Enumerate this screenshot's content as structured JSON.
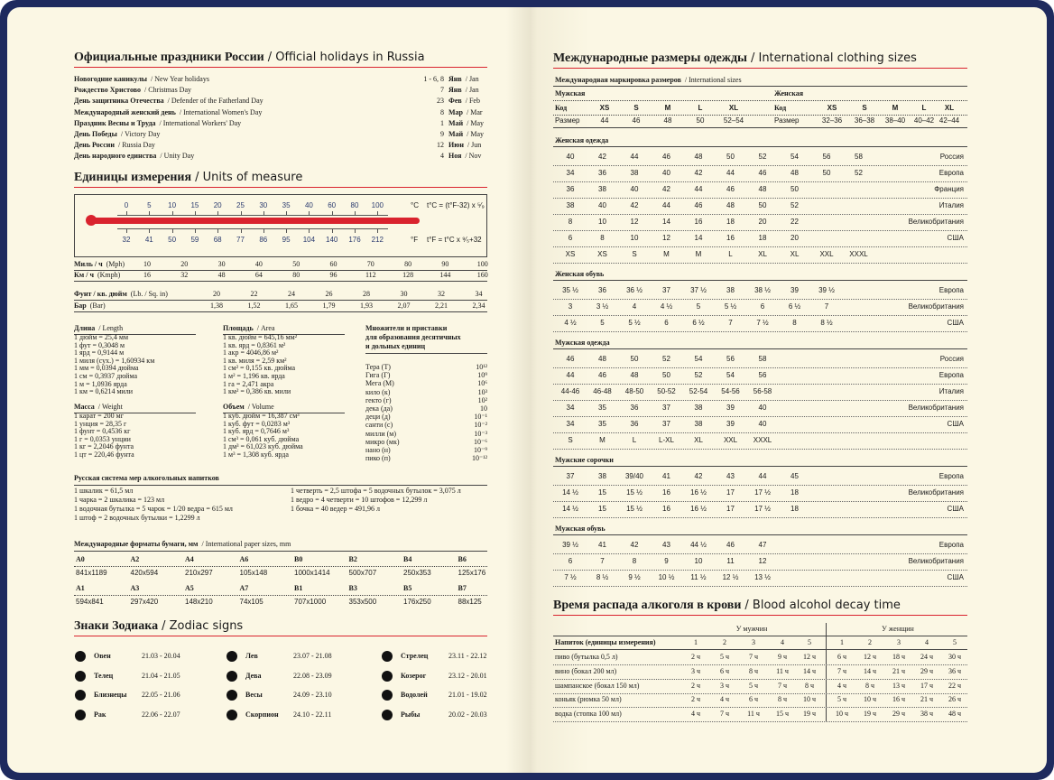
{
  "left": {
    "holidays": {
      "title": "Официальные праздники России",
      "subtitle": "/ Official holidays in Russia",
      "rows": [
        [
          "Новогодние каникулы",
          "/ New Year holidays",
          "1 - 6, 8",
          "Янв",
          "/ Jan"
        ],
        [
          "Рождество Христово",
          "/ Christmas Day",
          "7",
          "Янв",
          "/ Jan"
        ],
        [
          "День защитника Отечества",
          "/ Defender of the Fatherland Day",
          "23",
          "Фев",
          "/ Feb"
        ],
        [
          "Международный женский день",
          "/ International Women's Day",
          "8",
          "Мар",
          "/ Mar"
        ],
        [
          "Праздник Весны и Труда",
          "/ International Workers' Day",
          "1",
          "Май",
          "/ May"
        ],
        [
          "День Победы",
          "/ Victory Day",
          "9",
          "Май",
          "/ May"
        ],
        [
          "День России",
          "/ Russia Day",
          "12",
          "Июн",
          "/ Jun"
        ],
        [
          "День народного единства",
          "/ Unity Day",
          "4",
          "Ноя",
          "/ Nov"
        ]
      ]
    },
    "units": {
      "title": "Единицы измерения",
      "subtitle": "/ Units of measure",
      "thermometer": {
        "celsius": [
          0,
          5,
          10,
          15,
          20,
          25,
          30,
          35,
          40,
          60,
          80,
          100
        ],
        "fahrenheit": [
          32,
          41,
          50,
          59,
          68,
          77,
          86,
          95,
          104,
          140,
          176,
          212
        ],
        "c_unit": "°C",
        "c_formula": "t°C = (t°F-32) x ⁵⁄₉",
        "f_unit": "°F",
        "f_formula": "t°F = t°C x ⁹⁄₅+32"
      },
      "speed": [
        {
          "label": "Миль / ч",
          "label_en": "(Mph)",
          "values": [
            10,
            20,
            30,
            40,
            50,
            60,
            70,
            80,
            90,
            100
          ]
        },
        {
          "label": "Км / ч",
          "label_en": "(Kmph)",
          "values": [
            16,
            32,
            48,
            64,
            80,
            96,
            112,
            128,
            144,
            160
          ]
        }
      ],
      "pressure": [
        {
          "label": "Фунт / кв. дюйм",
          "label_en": "(Lb. / Sq. in)",
          "values": [
            "20",
            "22",
            "24",
            "26",
            "28",
            "30",
            "32",
            "34"
          ]
        },
        {
          "label": "Бар",
          "label_en": "(Bar)",
          "values": [
            "1,38",
            "1,52",
            "1,65",
            "1,79",
            "1,93",
            "2,07",
            "2,21",
            "2,34"
          ]
        }
      ],
      "length": {
        "title": "Длина",
        "title_en": "/ Length",
        "lines": [
          "1 дюйм = 25,4 мм",
          "1 фут = 0,3048 м",
          "1 ярд = 0,9144 м",
          "1 миля (сух.) = 1,60934 км",
          "1 мм = 0,0394 дюйма",
          "1 см = 0,3937 дюйма",
          "1 м = 1,0936 ярда",
          "1 км = 0,6214 мили"
        ]
      },
      "area": {
        "title": "Площадь",
        "title_en": "/ Area",
        "lines": [
          "1 кв. дюйм = 645,16 мм²",
          "1 кв. ярд = 0,8361 м²",
          "1 акр = 4046,86 м²",
          "1 кв. миля = 2,59 км²",
          "1 см² = 0,155 кв. дюйма",
          "1 м² = 1,196 кв. ярда",
          "1 га = 2,471 акра",
          "1 км² = 0,386 кв. мили"
        ]
      },
      "mass": {
        "title": "Масса",
        "title_en": "/ Weight",
        "lines": [
          "1 карат = 200 мг",
          "1 унция = 28,35 г",
          "1 фунт = 0,4536 кг",
          "1 г = 0,0353 унции",
          "1 кг = 2,2046 фунта",
          "1 цт = 220,46 фунта"
        ]
      },
      "volume": {
        "title": "Объем",
        "title_en": "/ Volume",
        "lines": [
          "1 куб. дюйм = 16,387 см³",
          "1 куб. фут = 0,0283 м³",
          "1 куб. ярд = 0,7646 м³",
          "1 см³ = 0,061 куб. дюйма",
          "1 дм³ = 61,023 куб. дюйма",
          "1 м³ = 1,308 куб. ярда"
        ]
      },
      "prefixes": {
        "title": [
          "Множители и приставки",
          "для образования десятичных",
          "и дольных единиц"
        ],
        "rows": [
          [
            "Тера (Т)",
            "10¹²"
          ],
          [
            "Гига (Г)",
            "10⁹"
          ],
          [
            "Мега (М)",
            "10⁶"
          ],
          [
            "кило (к)",
            "10³"
          ],
          [
            "гекто (г)",
            "10²"
          ],
          [
            "дека (да)",
            "10"
          ],
          [
            "деци (д)",
            "10⁻¹"
          ],
          [
            "санти (с)",
            "10⁻²"
          ],
          [
            "милли (м)",
            "10⁻³"
          ],
          [
            "микро (мк)",
            "10⁻⁶"
          ],
          [
            "нано (н)",
            "10⁻⁹"
          ],
          [
            "пико (п)",
            "10⁻¹²"
          ]
        ]
      }
    },
    "alcohol_measures": {
      "title": "Русская система мер алкогольных напитков",
      "left": [
        "1 шкалик = 61,5 мл",
        "1 чарка = 2 шкалика = 123 мл",
        "1 водочная бутылка = 5 чарок = 1/20 ведра = 615 мл",
        "1 штоф = 2 водочных бутылки = 1,2299 л"
      ],
      "right": [
        "1 четверть = 2,5 штофа = 5 водочных бутылок = 3,075 л",
        "1 ведро = 4 четверти = 10 штофов = 12,299 л",
        "1 бочка = 40 ведер = 491,96 л"
      ]
    },
    "paper": {
      "title": "Международные форматы бумаги, мм",
      "subtitle": "/ International paper sizes, mm",
      "rows": [
        {
          "names": [
            "A0",
            "A2",
            "A4",
            "A6",
            "B0",
            "B2",
            "B4",
            "B6"
          ],
          "sizes": [
            "841x1189",
            "420x594",
            "210x297",
            "105x148",
            "1000x1414",
            "500x707",
            "250x353",
            "125x176"
          ]
        },
        {
          "names": [
            "A1",
            "A3",
            "A5",
            "A7",
            "B1",
            "B3",
            "B5",
            "B7"
          ],
          "sizes": [
            "594x841",
            "297x420",
            "148x210",
            "74x105",
            "707x1000",
            "353x500",
            "176x250",
            "88x125"
          ]
        }
      ]
    },
    "zodiac": {
      "title": "Знаки Зодиака",
      "subtitle": "/ Zodiac signs",
      "signs": [
        [
          "Овен",
          "21.03 - 20.04"
        ],
        [
          "Телец",
          "21.04 - 21.05"
        ],
        [
          "Близнецы",
          "22.05 - 21.06"
        ],
        [
          "Рак",
          "22.06 - 22.07"
        ],
        [
          "Лев",
          "23.07 - 21.08"
        ],
        [
          "Дева",
          "22.08 - 23.09"
        ],
        [
          "Весы",
          "24.09 - 23.10"
        ],
        [
          "Скорпион",
          "24.10 - 22.11"
        ],
        [
          "Стрелец",
          "23.11 - 22.12"
        ],
        [
          "Козерог",
          "23.12 - 20.01"
        ],
        [
          "Водолей",
          "21.01 - 19.02"
        ],
        [
          "Рыбы",
          "20.02 - 20.03"
        ]
      ]
    }
  },
  "right": {
    "clothing": {
      "title": "Международные размеры одежды",
      "subtitle": "/ International clothing sizes",
      "marking": {
        "title": "Международная маркировка размеров",
        "subtitle": "/ International sizes",
        "men": {
          "label": "Мужская",
          "code": "Код",
          "codes": [
            "XS",
            "S",
            "M",
            "L",
            "XL"
          ],
          "size": "Размер",
          "sizes": [
            "44",
            "46",
            "48",
            "50",
            "52–54"
          ]
        },
        "women": {
          "label": "Женская",
          "code": "Код",
          "codes": [
            "XS",
            "S",
            "M",
            "L",
            "XL"
          ],
          "size": "Размер",
          "sizes": [
            "32–36",
            "36–38",
            "38–40",
            "40–42",
            "42–44"
          ]
        }
      },
      "sections": [
        {
          "title": "Женская одежда",
          "rows": [
            {
              "values": [
                "40",
                "42",
                "44",
                "46",
                "48",
                "50",
                "52",
                "54",
                "56",
                "58"
              ],
              "country": "Россия"
            },
            {
              "values": [
                "34",
                "36",
                "38",
                "40",
                "42",
                "44",
                "46",
                "48",
                "50",
                "52"
              ],
              "country": "Европа"
            },
            {
              "values": [
                "36",
                "38",
                "40",
                "42",
                "44",
                "46",
                "48",
                "50"
              ],
              "country": "Франция"
            },
            {
              "values": [
                "38",
                "40",
                "42",
                "44",
                "46",
                "48",
                "50",
                "52"
              ],
              "country": "Италия"
            },
            {
              "values": [
                "8",
                "10",
                "12",
                "14",
                "16",
                "18",
                "20",
                "22"
              ],
              "country": "Великобритания"
            },
            {
              "values": [
                "6",
                "8",
                "10",
                "12",
                "14",
                "16",
                "18",
                "20"
              ],
              "country": "США"
            },
            {
              "values": [
                "XS",
                "XS",
                "S",
                "M",
                "M",
                "L",
                "XL",
                "XL",
                "XXL",
                "XXXL"
              ]
            }
          ]
        },
        {
          "title": "Женская обувь",
          "rows": [
            {
              "values": [
                "35 ½",
                "36",
                "36 ½",
                "37",
                "37 ½",
                "38",
                "38 ½",
                "39",
                "39 ½"
              ],
              "country": "Европа"
            },
            {
              "values": [
                "3",
                "3 ½",
                "4",
                "4 ½",
                "5",
                "5 ½",
                "6",
                "6 ½",
                "7"
              ],
              "country": "Великобритания"
            },
            {
              "values": [
                "4 ½",
                "5",
                "5 ½",
                "6",
                "6 ½",
                "7",
                "7 ½",
                "8",
                "8 ½"
              ],
              "country": "США"
            }
          ]
        },
        {
          "title": "Мужская одежда",
          "rows": [
            {
              "values": [
                "46",
                "48",
                "50",
                "52",
                "54",
                "56",
                "58"
              ],
              "country": "Россия"
            },
            {
              "values": [
                "44",
                "46",
                "48",
                "50",
                "52",
                "54",
                "56"
              ],
              "country": "Европа"
            },
            {
              "values": [
                "44-46",
                "46-48",
                "48-50",
                "50-52",
                "52-54",
                "54-56",
                "56-58"
              ],
              "country": "Италия"
            },
            {
              "values": [
                "34",
                "35",
                "36",
                "37",
                "38",
                "39",
                "40"
              ],
              "country": "Великобритания"
            },
            {
              "values": [
                "34",
                "35",
                "36",
                "37",
                "38",
                "39",
                "40"
              ],
              "country": "США"
            },
            {
              "values": [
                "S",
                "M",
                "L",
                "L-XL",
                "XL",
                "XXL",
                "XXXL"
              ]
            }
          ]
        },
        {
          "title": "Мужские сорочки",
          "rows": [
            {
              "values": [
                "37",
                "38",
                "39/40",
                "41",
                "42",
                "43",
                "44",
                "45"
              ],
              "country": "Европа"
            },
            {
              "values": [
                "14 ½",
                "15",
                "15 ½",
                "16",
                "16 ½",
                "17",
                "17 ½",
                "18"
              ],
              "country": "Великобритания"
            },
            {
              "values": [
                "14 ½",
                "15",
                "15 ½",
                "16",
                "16 ½",
                "17",
                "17 ½",
                "18"
              ],
              "country": "США"
            }
          ]
        },
        {
          "title": "Мужская обувь",
          "rows": [
            {
              "values": [
                "39 ½",
                "41",
                "42",
                "43",
                "44 ½",
                "46",
                "47"
              ],
              "country": "Европа"
            },
            {
              "values": [
                "6",
                "7",
                "8",
                "9",
                "10",
                "11",
                "12"
              ],
              "country": "Великобритания"
            },
            {
              "values": [
                "7 ½",
                "8 ½",
                "9 ½",
                "10 ½",
                "11 ½",
                "12 ½",
                "13 ½"
              ],
              "country": "США"
            }
          ]
        }
      ]
    },
    "alcohol_decay": {
      "title": "Время распада алкоголя в крови",
      "subtitle": "/ Blood alcohol decay time",
      "men": "У мужчин",
      "women": "У женщин",
      "drink_header": "Напиток (единицы измерения)",
      "men_cols": [
        1,
        2,
        3,
        4,
        5
      ],
      "women_cols": [
        1,
        2,
        3,
        4,
        5
      ],
      "rows": [
        {
          "drink": "пиво (бутылка 0,5 л)",
          "men": [
            "2 ч",
            "5 ч",
            "7 ч",
            "9 ч",
            "12 ч"
          ],
          "women": [
            "6 ч",
            "12 ч",
            "18 ч",
            "24 ч",
            "30 ч"
          ]
        },
        {
          "drink": "вино (бокал 200 мл)",
          "men": [
            "3 ч",
            "6 ч",
            "8 ч",
            "11 ч",
            "14 ч"
          ],
          "women": [
            "7 ч",
            "14 ч",
            "21 ч",
            "29 ч",
            "36 ч"
          ]
        },
        {
          "drink": "шампанское (бокал 150 мл)",
          "men": [
            "2 ч",
            "3 ч",
            "5 ч",
            "7 ч",
            "8 ч"
          ],
          "women": [
            "4 ч",
            "8 ч",
            "13 ч",
            "17 ч",
            "22 ч"
          ]
        },
        {
          "drink": "коньяк (рюмка 50 мл)",
          "men": [
            "2 ч",
            "4 ч",
            "6 ч",
            "8 ч",
            "10 ч"
          ],
          "women": [
            "5 ч",
            "10 ч",
            "16 ч",
            "21 ч",
            "26 ч"
          ]
        },
        {
          "drink": "водка (стопка 100 мл)",
          "men": [
            "4 ч",
            "7 ч",
            "11 ч",
            "15 ч",
            "19 ч"
          ],
          "women": [
            "10 ч",
            "19 ч",
            "29 ч",
            "38 ч",
            "48 ч"
          ]
        }
      ]
    }
  }
}
